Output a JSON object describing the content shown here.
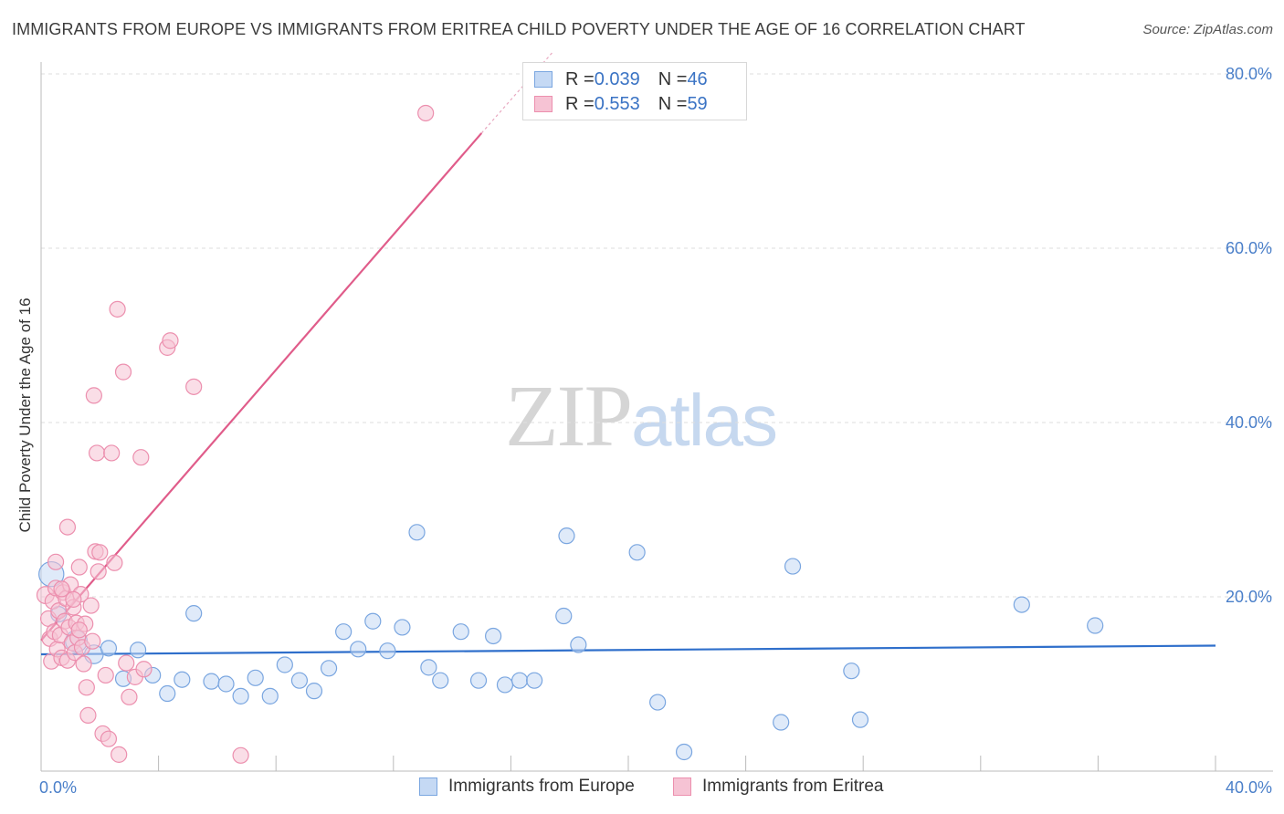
{
  "title": "IMMIGRANTS FROM EUROPE VS IMMIGRANTS FROM ERITREA CHILD POVERTY UNDER THE AGE OF 16 CORRELATION CHART",
  "source": "Source: ZipAtlas.com",
  "watermark": {
    "zip": "ZIP",
    "atlas": "atlas"
  },
  "legend_top": [
    {
      "r_label": "R = ",
      "r_value": "0.039",
      "n_label": "N = ",
      "n_value": "46"
    },
    {
      "r_label": "R = ",
      "r_value": "0.553",
      "n_label": "N = ",
      "n_value": "59"
    }
  ],
  "chart_data": {
    "type": "scatter",
    "title": "IMMIGRANTS FROM EUROPE VS IMMIGRANTS FROM ERITREA CHILD POVERTY UNDER THE AGE OF 16 CORRELATION CHART",
    "xlabel": "",
    "ylabel": "Child Poverty Under the Age of 16",
    "xlim": [
      0,
      40
    ],
    "ylim": [
      0,
      80
    ],
    "x_tick_labels": [
      "0.0%",
      "40.0%"
    ],
    "y_ticks": [
      20,
      40,
      60,
      80
    ],
    "y_tick_labels": [
      "20.0%",
      "40.0%",
      "60.0%",
      "80.0%"
    ],
    "grid": true,
    "legend_position": "top-center",
    "series": [
      {
        "name": "Immigrants from Europe",
        "color": "#7aa6e0",
        "fill": "#c5d9f4",
        "r": 0.039,
        "n": 46,
        "trend": {
          "x": [
            0,
            40
          ],
          "y": [
            13.4,
            14.4
          ],
          "color": "#2f6fcb"
        },
        "points": [
          [
            0.35,
            22.6,
            1.6
          ],
          [
            1.2,
            14.9,
            1.4
          ],
          [
            1.8,
            13.4,
            1.2
          ],
          [
            2.3,
            14.1,
            1.0
          ],
          [
            2.8,
            10.6,
            1.0
          ],
          [
            3.3,
            13.9,
            1.0
          ],
          [
            3.8,
            11.0,
            1.0
          ],
          [
            4.3,
            8.9,
            1.0
          ],
          [
            4.8,
            10.5,
            1.0
          ],
          [
            5.2,
            18.1,
            1.0
          ],
          [
            5.8,
            10.3,
            1.0
          ],
          [
            6.3,
            10.0,
            1.0
          ],
          [
            6.8,
            8.6,
            1.0
          ],
          [
            7.3,
            10.7,
            1.0
          ],
          [
            7.8,
            8.6,
            1.0
          ],
          [
            8.3,
            12.2,
            1.0
          ],
          [
            8.8,
            10.4,
            1.0
          ],
          [
            9.3,
            9.2,
            1.0
          ],
          [
            9.8,
            11.8,
            1.0
          ],
          [
            10.3,
            16.0,
            1.0
          ],
          [
            10.8,
            14.0,
            1.0
          ],
          [
            11.3,
            17.2,
            1.0
          ],
          [
            11.8,
            13.8,
            1.0
          ],
          [
            12.3,
            16.5,
            1.0
          ],
          [
            12.8,
            27.4,
            1.0
          ],
          [
            13.2,
            11.9,
            1.0
          ],
          [
            13.6,
            10.4,
            1.0
          ],
          [
            14.3,
            16.0,
            1.0
          ],
          [
            14.9,
            10.4,
            1.0
          ],
          [
            15.4,
            15.5,
            1.0
          ],
          [
            15.8,
            9.9,
            1.0
          ],
          [
            16.3,
            10.4,
            1.0
          ],
          [
            16.8,
            10.4,
            1.0
          ],
          [
            17.8,
            17.8,
            1.0
          ],
          [
            17.9,
            27.0,
            1.0
          ],
          [
            18.3,
            14.5,
            1.0
          ],
          [
            20.3,
            25.1,
            1.0
          ],
          [
            21.0,
            7.9,
            1.0
          ],
          [
            21.9,
            2.2,
            1.0
          ],
          [
            25.2,
            5.6,
            1.0
          ],
          [
            25.6,
            23.5,
            1.0
          ],
          [
            27.6,
            11.5,
            1.0
          ],
          [
            27.9,
            5.9,
            1.0
          ],
          [
            33.4,
            19.1,
            1.0
          ],
          [
            35.9,
            16.7,
            1.0
          ],
          [
            0.6,
            18.0,
            1.0
          ]
        ]
      },
      {
        "name": "Immigrants from Eritrea",
        "color": "#ec8fae",
        "fill": "#f6c3d4",
        "r": 0.553,
        "n": 59,
        "trend": {
          "x": [
            0,
            15
          ],
          "y": [
            15.0,
            73.2
          ],
          "color": "#e05c8a",
          "dashed_to": [
            17.4,
            82.4
          ]
        },
        "points": [
          [
            0.15,
            20.2,
            1.1
          ],
          [
            0.25,
            17.5,
            1.0
          ],
          [
            0.3,
            15.2,
            1.0
          ],
          [
            0.35,
            12.6,
            1.0
          ],
          [
            0.4,
            19.5,
            1.0
          ],
          [
            0.45,
            16.0,
            1.0
          ],
          [
            0.5,
            21.0,
            1.0
          ],
          [
            0.55,
            14.0,
            1.0
          ],
          [
            0.6,
            18.4,
            1.0
          ],
          [
            0.65,
            15.6,
            1.0
          ],
          [
            0.7,
            13.0,
            1.0
          ],
          [
            0.75,
            20.5,
            1.0
          ],
          [
            0.8,
            17.2,
            1.0
          ],
          [
            0.85,
            19.8,
            1.0
          ],
          [
            0.9,
            12.7,
            1.0
          ],
          [
            0.95,
            16.5,
            1.0
          ],
          [
            1.0,
            21.4,
            1.0
          ],
          [
            1.05,
            14.7,
            1.0
          ],
          [
            1.1,
            18.8,
            1.0
          ],
          [
            1.15,
            13.6,
            1.0
          ],
          [
            1.2,
            17.0,
            1.0
          ],
          [
            1.25,
            15.3,
            1.0
          ],
          [
            1.3,
            23.4,
            1.0
          ],
          [
            1.35,
            20.3,
            1.0
          ],
          [
            1.4,
            14.2,
            1.0
          ],
          [
            1.45,
            12.3,
            1.0
          ],
          [
            1.5,
            16.9,
            1.0
          ],
          [
            1.55,
            9.6,
            1.0
          ],
          [
            1.6,
            6.4,
            1.0
          ],
          [
            1.7,
            19.0,
            1.0
          ],
          [
            1.75,
            14.9,
            1.0
          ],
          [
            1.8,
            43.1,
            1.0
          ],
          [
            1.85,
            25.2,
            1.0
          ],
          [
            1.9,
            36.5,
            1.0
          ],
          [
            1.95,
            22.9,
            1.0
          ],
          [
            2.0,
            25.1,
            1.0
          ],
          [
            2.1,
            4.3,
            1.0
          ],
          [
            2.2,
            11.0,
            1.0
          ],
          [
            2.3,
            3.7,
            1.0
          ],
          [
            2.4,
            36.5,
            1.0
          ],
          [
            2.5,
            23.9,
            1.0
          ],
          [
            2.6,
            53.0,
            1.0
          ],
          [
            2.65,
            1.9,
            1.0
          ],
          [
            2.8,
            45.8,
            1.0
          ],
          [
            2.9,
            12.4,
            1.0
          ],
          [
            3.0,
            8.5,
            1.0
          ],
          [
            3.2,
            10.8,
            1.0
          ],
          [
            3.4,
            36.0,
            1.0
          ],
          [
            3.5,
            11.7,
            1.0
          ],
          [
            4.3,
            48.6,
            1.0
          ],
          [
            4.4,
            49.4,
            1.0
          ],
          [
            5.2,
            44.1,
            1.0
          ],
          [
            6.8,
            1.8,
            1.0
          ],
          [
            13.1,
            75.5,
            1.0
          ],
          [
            0.9,
            28.0,
            1.0
          ],
          [
            1.1,
            19.7,
            1.0
          ],
          [
            0.5,
            24.0,
            1.0
          ],
          [
            1.3,
            16.2,
            1.0
          ],
          [
            0.7,
            20.9,
            1.0
          ]
        ]
      }
    ]
  },
  "legend_bottom": [
    {
      "label": "Immigrants from Europe"
    },
    {
      "label": "Immigrants from Eritrea"
    }
  ]
}
